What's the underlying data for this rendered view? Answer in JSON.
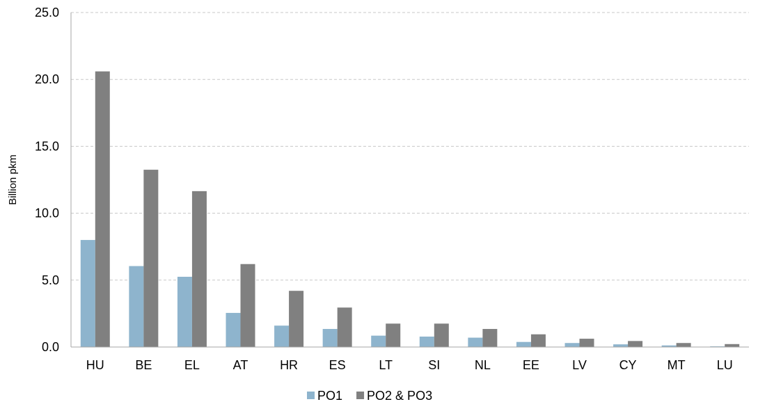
{
  "chart_data": {
    "type": "bar",
    "ylabel": "Billion pkm",
    "ylim": [
      0,
      25
    ],
    "yticks": [
      0,
      5,
      10,
      15,
      20,
      25
    ],
    "ytick_labels": [
      "0.0",
      "5.0",
      "10.0",
      "15.0",
      "20.0",
      "25.0"
    ],
    "grid": true,
    "legend_position": "bottom",
    "categories": [
      "HU",
      "BE",
      "EL",
      "AT",
      "HR",
      "ES",
      "LT",
      "SI",
      "NL",
      "EE",
      "LV",
      "CY",
      "MT",
      "LU"
    ],
    "series": [
      {
        "name": "PO1",
        "color": "#8eb4cd",
        "values": [
          8.0,
          6.05,
          5.25,
          2.55,
          1.6,
          1.35,
          0.85,
          0.78,
          0.7,
          0.38,
          0.3,
          0.2,
          0.12,
          0.05
        ]
      },
      {
        "name": "PO2 & PO3",
        "color": "#808080",
        "values": [
          20.6,
          13.25,
          11.65,
          6.2,
          4.2,
          2.95,
          1.75,
          1.75,
          1.35,
          0.95,
          0.62,
          0.45,
          0.3,
          0.22
        ]
      }
    ]
  }
}
